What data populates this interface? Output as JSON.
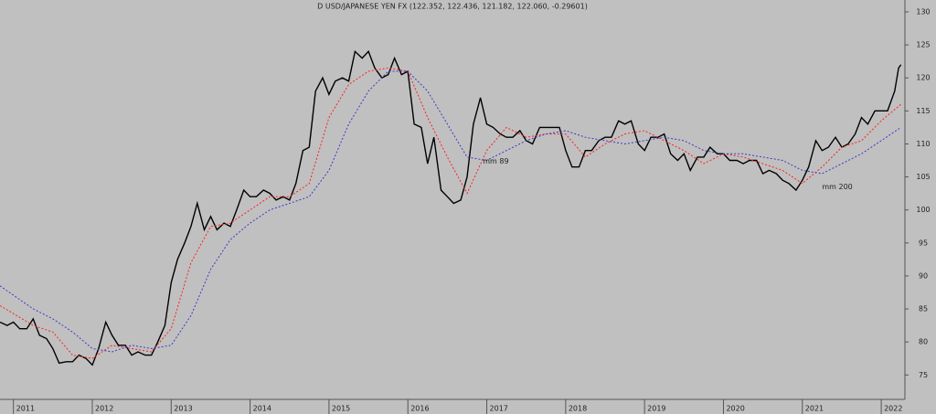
{
  "chart_data": {
    "type": "line",
    "title": "D USD/JAPANESE YEN FX (122.352, 122.436, 121.182, 122.060, -0.29601)",
    "xlim": [
      2010.83,
      2022.3
    ],
    "xticks": [
      2011,
      2012,
      2013,
      2014,
      2015,
      2016,
      2017,
      2018,
      2019,
      2020,
      2021,
      2022
    ],
    "ylim": [
      71.3,
      131.8
    ],
    "yticks": [
      75,
      80,
      85,
      90,
      95,
      100,
      105,
      110,
      115,
      120,
      125,
      130
    ],
    "series": [
      {
        "color": "#000000",
        "style": "solid",
        "x": [
          2010.83,
          2010.92,
          2011,
          2011.08,
          2011.17,
          2011.25,
          2011.33,
          2011.42,
          2011.5,
          2011.58,
          2011.67,
          2011.75,
          2011.83,
          2011.92,
          2012,
          2012.08,
          2012.17,
          2012.25,
          2012.33,
          2012.42,
          2012.5,
          2012.58,
          2012.67,
          2012.75,
          2012.83,
          2012.92,
          2013,
          2013.08,
          2013.17,
          2013.25,
          2013.33,
          2013.42,
          2013.5,
          2013.58,
          2013.67,
          2013.75,
          2013.83,
          2013.92,
          2014,
          2014.08,
          2014.17,
          2014.25,
          2014.33,
          2014.42,
          2014.5,
          2014.58,
          2014.67,
          2014.75,
          2014.83,
          2014.92,
          2015,
          2015.08,
          2015.17,
          2015.25,
          2015.33,
          2015.42,
          2015.5,
          2015.58,
          2015.67,
          2015.75,
          2015.83,
          2015.92,
          2016,
          2016.08,
          2016.17,
          2016.25,
          2016.33,
          2016.42,
          2016.5,
          2016.58,
          2016.67,
          2016.75,
          2016.83,
          2016.92,
          2017,
          2017.08,
          2017.17,
          2017.25,
          2017.33,
          2017.42,
          2017.5,
          2017.58,
          2017.67,
          2017.75,
          2017.83,
          2017.92,
          2018,
          2018.08,
          2018.17,
          2018.25,
          2018.33,
          2018.42,
          2018.5,
          2018.58,
          2018.67,
          2018.75,
          2018.83,
          2018.92,
          2019,
          2019.08,
          2019.17,
          2019.25,
          2019.33,
          2019.42,
          2019.5,
          2019.58,
          2019.67,
          2019.75,
          2019.83,
          2019.92,
          2020,
          2020.08,
          2020.17,
          2020.25,
          2020.33,
          2020.42,
          2020.5,
          2020.58,
          2020.67,
          2020.75,
          2020.83,
          2020.92,
          2021,
          2021.08,
          2021.17,
          2021.25,
          2021.33,
          2021.42,
          2021.5,
          2021.58,
          2021.67,
          2021.75,
          2021.83,
          2021.92,
          2022,
          2022.08,
          2022.17,
          2022.22,
          2022.25
        ],
        "values": [
          83,
          82.5,
          83,
          82,
          82,
          83.5,
          81,
          80.5,
          79,
          76.8,
          77,
          77,
          78,
          77.5,
          76.5,
          79,
          83,
          81,
          79.5,
          79.5,
          78,
          78.5,
          78,
          78,
          80,
          82.5,
          89,
          92.5,
          95,
          97.5,
          101,
          97,
          99,
          97,
          98,
          97.5,
          100,
          103,
          102,
          102,
          103,
          102.5,
          101.5,
          102,
          101.5,
          104,
          109,
          109.5,
          118,
          120,
          117.5,
          119.5,
          120,
          119.5,
          124,
          123,
          124,
          121.5,
          120,
          120.5,
          123,
          120.5,
          121,
          113,
          112.5,
          107,
          111,
          103,
          102,
          101,
          101.5,
          105,
          113,
          117,
          113,
          112.5,
          111.5,
          111,
          111,
          112,
          110.5,
          110,
          112.5,
          112.5,
          112.5,
          112.5,
          109,
          106.5,
          106.5,
          109,
          109,
          110.5,
          111,
          111,
          113.5,
          113,
          113.5,
          110,
          109,
          111,
          111,
          111.5,
          108.5,
          107.5,
          108.5,
          106,
          108,
          108,
          109.5,
          108.5,
          108.5,
          107.5,
          107.5,
          107,
          107.5,
          107.5,
          105.5,
          106,
          105.5,
          104.5,
          104,
          103,
          104.5,
          106.5,
          110.5,
          109,
          109.5,
          111,
          109.5,
          110,
          111.5,
          114,
          113,
          115,
          115,
          115,
          118,
          121.5,
          122
        ]
      },
      {
        "name": "mm 89",
        "color": "#ff2020",
        "style": "dotted",
        "x": [
          2010.83,
          2011.25,
          2011.5,
          2011.75,
          2012,
          2012.25,
          2012.5,
          2012.75,
          2013,
          2013.25,
          2013.5,
          2013.75,
          2014,
          2014.25,
          2014.5,
          2014.75,
          2015,
          2015.25,
          2015.5,
          2015.75,
          2016,
          2016.25,
          2016.5,
          2016.75,
          2017,
          2017.25,
          2017.5,
          2017.75,
          2018,
          2018.25,
          2018.5,
          2018.75,
          2019,
          2019.25,
          2019.5,
          2019.75,
          2020,
          2020.25,
          2020.5,
          2020.75,
          2021,
          2021.25,
          2021.5,
          2021.75,
          2022,
          2022.25
        ],
        "values": [
          85.5,
          82.5,
          81.5,
          78,
          77.5,
          79.5,
          79,
          78.5,
          82,
          92,
          97.5,
          98,
          100,
          102,
          102,
          104,
          114,
          119,
          121,
          121.5,
          121,
          114,
          108,
          102.5,
          109,
          112.5,
          111,
          111.5,
          111.5,
          108,
          110,
          111.5,
          112,
          110.5,
          109,
          107,
          108.5,
          108,
          107,
          106,
          104,
          106.5,
          109.5,
          110.5,
          113.5,
          116
        ]
      },
      {
        "name": "mm 200",
        "color": "#3a3ac8",
        "style": "dotted",
        "x": [
          2010.83,
          2011.25,
          2011.5,
          2011.75,
          2012,
          2012.25,
          2012.5,
          2012.75,
          2013,
          2013.25,
          2013.5,
          2013.75,
          2014,
          2014.25,
          2014.5,
          2014.75,
          2015,
          2015.25,
          2015.5,
          2015.75,
          2016,
          2016.25,
          2016.5,
          2016.75,
          2017,
          2017.25,
          2017.5,
          2017.75,
          2018,
          2018.25,
          2018.5,
          2018.75,
          2019,
          2019.25,
          2019.5,
          2019.75,
          2020,
          2020.25,
          2020.5,
          2020.75,
          2021,
          2021.25,
          2021.5,
          2021.75,
          2022,
          2022.25
        ],
        "values": [
          88.5,
          85,
          83.5,
          81.5,
          79,
          78.5,
          79.5,
          79,
          79.5,
          84,
          91,
          95.5,
          98,
          100,
          101,
          102,
          106,
          113,
          118,
          121,
          121,
          118,
          113,
          108,
          107.5,
          109,
          110.5,
          111.5,
          112,
          111,
          110.5,
          110,
          110.5,
          111,
          110.5,
          109,
          108.5,
          108.5,
          108,
          107.5,
          106,
          105.5,
          107,
          108.5,
          110.5,
          112.5
        ]
      }
    ]
  }
}
